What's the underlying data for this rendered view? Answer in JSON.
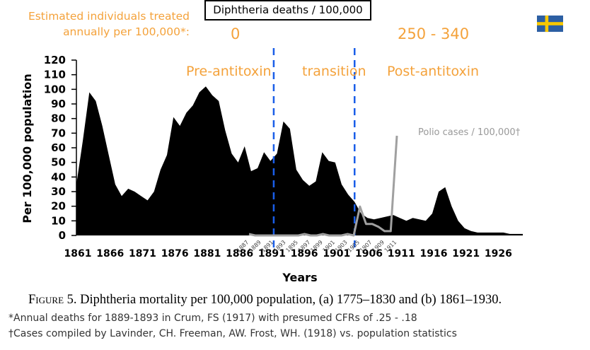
{
  "annotations": {
    "treated_label": "Estimated individuals treated\nannually per 100,000*:",
    "chart_box_title": "Diphtheria deaths / 100,000",
    "rate_pre": "0",
    "rate_post": "250 - 340",
    "phase_pre": "Pre-antitoxin",
    "phase_transition": "transition",
    "phase_post": "Post-antitoxin",
    "polio_label": "Polio cases / 100,000†",
    "flag": "sweden-flag"
  },
  "caption": {
    "figure_label": "Figure 5.",
    "text": "Diphtheria mortality per 100,000 population, (a) 1775–1830 and (b) 1861–1930."
  },
  "footnotes": [
    "*Annual deaths for 1889-1893 in Crum, FS (1917) with presumed CFRs of .25 - .18",
    "†Cases compiled by Lavinder, CH. Freeman, AW. Frost, WH. (1918) vs. population statistics"
  ],
  "colors": {
    "accent": "#f4a23b",
    "area": "#000000",
    "polio": "#a0a0a0",
    "divider": "#1a5ee8"
  },
  "chart_data": [
    {
      "type": "area",
      "ylabel": "Per 100,000 population",
      "xlabel": "Years",
      "xlim": [
        1861,
        1930
      ],
      "ylim": [
        0,
        120
      ],
      "xticks": [
        1861,
        1866,
        1871,
        1876,
        1881,
        1886,
        1891,
        1896,
        1901,
        1906,
        1911,
        1916,
        1921,
        1926
      ],
      "yticks": [
        0,
        10,
        20,
        30,
        40,
        50,
        60,
        70,
        80,
        90,
        100,
        110,
        120
      ],
      "phase_dividers": [
        1891.5,
        1904
      ],
      "series": [
        {
          "x": [
            1861,
            1862,
            1863,
            1864,
            1865,
            1866,
            1867,
            1868,
            1869,
            1870,
            1871,
            1872,
            1873,
            1874,
            1875,
            1876,
            1877,
            1878,
            1879,
            1880,
            1881,
            1882,
            1883,
            1884,
            1885,
            1886,
            1887,
            1888,
            1889,
            1890,
            1891,
            1892,
            1893,
            1894,
            1895,
            1896,
            1897,
            1898,
            1899,
            1900,
            1901,
            1902,
            1903,
            1904,
            1905,
            1906,
            1907,
            1908,
            1909,
            1910,
            1911,
            1912,
            1913,
            1914,
            1915,
            1916,
            1917,
            1918,
            1919,
            1920,
            1921,
            1922,
            1923,
            1924,
            1925,
            1926,
            1927,
            1928,
            1929,
            1930
          ],
          "values": [
            35,
            65,
            98,
            92,
            75,
            55,
            35,
            27,
            32,
            30,
            27,
            24,
            30,
            45,
            55,
            81,
            75,
            84,
            89,
            98,
            102,
            96,
            92,
            72,
            56,
            50,
            61,
            44,
            46,
            57,
            51,
            56,
            78,
            73,
            45,
            38,
            34,
            37,
            57,
            51,
            50,
            35,
            28,
            23,
            15,
            12,
            11,
            12,
            13,
            14,
            12,
            10,
            12,
            11,
            10,
            15,
            30,
            33,
            20,
            10,
            5,
            3,
            2,
            2,
            2,
            2,
            2,
            1,
            1,
            1
          ]
        }
      ]
    },
    {
      "type": "line",
      "ylim": [
        0,
        70
      ],
      "yticks": [
        60,
        70
      ],
      "xticks": [
        "1887",
        "1889",
        "1891",
        "1893",
        "1895",
        "1897",
        "1899",
        "1901",
        "1903",
        "1905",
        "1907",
        "1909",
        "1911"
      ],
      "series": [
        {
          "x": [
            1887,
            1888,
            1889,
            1890,
            1891,
            1892,
            1893,
            1894,
            1895,
            1896,
            1897,
            1898,
            1899,
            1900,
            1901,
            1902,
            1903,
            1904,
            1905,
            1906,
            1907,
            1908,
            1909,
            1910,
            1911
          ],
          "values": [
            1,
            0,
            0,
            0,
            0,
            0,
            0,
            0,
            0,
            1,
            0,
            0,
            1,
            0,
            0,
            0,
            1,
            0,
            20,
            8,
            8,
            6,
            3,
            3,
            69
          ]
        }
      ]
    }
  ]
}
